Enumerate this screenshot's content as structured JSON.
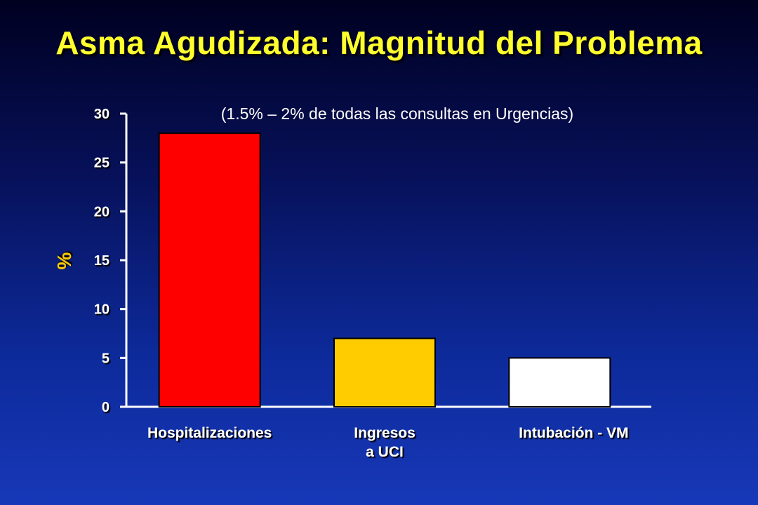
{
  "slide": {
    "title": "Asma Agudizada: Magnitud del Problema"
  },
  "colors": {
    "background_top": "#000020",
    "background_bottom": "#1738b8",
    "title": "#ffff2e",
    "axis": "#ffffff",
    "ylabel": "#ffcc00"
  },
  "chart_data": {
    "type": "bar",
    "title": "",
    "subtitle": "(1.5% – 2% de todas las consultas en Urgencias)",
    "xlabel": "",
    "ylabel": "%",
    "ylim": [
      0,
      30
    ],
    "yticks": [
      "0",
      "5",
      "10",
      "15",
      "20",
      "25",
      "30"
    ],
    "grid": false,
    "legend": "none",
    "categories": [
      [
        "Hospitalizaciones"
      ],
      [
        "Ingresos",
        "a UCI"
      ],
      [
        "Intubación - VM"
      ]
    ],
    "values": [
      28,
      7,
      5
    ],
    "bar_colors": [
      "#ff0000",
      "#ffcc00",
      "#ffffff"
    ]
  }
}
